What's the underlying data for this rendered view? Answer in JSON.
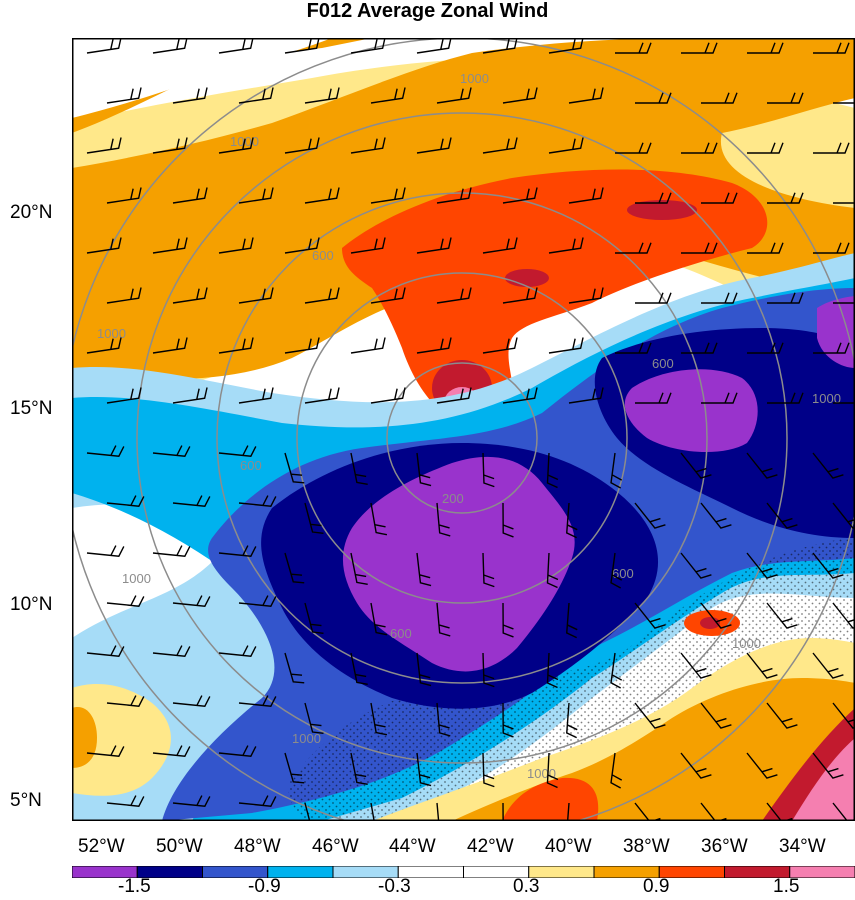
{
  "title": "F012 Average Zonal Wind",
  "latitude_labels": [
    "20°N",
    "15°N",
    "10°N",
    "5°N"
  ],
  "longitude_labels": [
    "52°W",
    "50°W",
    "48°W",
    "46°W",
    "44°W",
    "42°W",
    "40°W",
    "38°W",
    "36°W",
    "34°W"
  ],
  "range_ring_labels": [
    "200",
    "600",
    "1000"
  ],
  "colorbar": {
    "labels": [
      "-1.5",
      "-0.9",
      "-0.3",
      "0.3",
      "0.9",
      "1.5"
    ],
    "colors": [
      "#9933cc",
      "#000088",
      "#3355cc",
      "#00b2ee",
      "#a6dcf7",
      "#ffffff",
      "#ffffff",
      "#ffe88a",
      "#f5a000",
      "#ff4500",
      "#c21a2e",
      "#f57fb0"
    ]
  },
  "colors": {
    "ring": "#8c8c8c",
    "barb": "#000000"
  }
}
